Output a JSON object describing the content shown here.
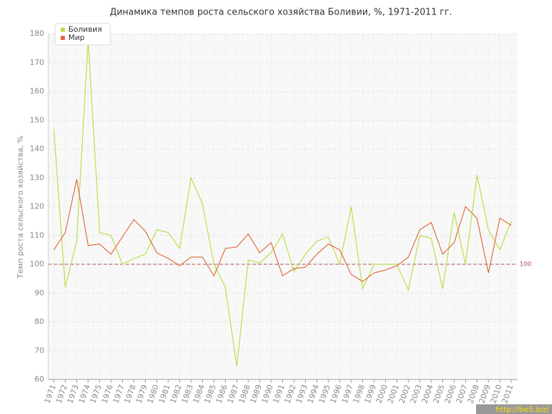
{
  "chart_data": {
    "type": "line",
    "title": "Динамика темпов роста сельского хозяйства Боливии, %, 1971-2011 гг.",
    "y_label": "Темп роста сельского хозяйства, %",
    "categories": [
      "1971",
      "1972",
      "1973",
      "1974",
      "1975",
      "1976",
      "1977",
      "1978",
      "1979",
      "1980",
      "1981",
      "1982",
      "1983",
      "1984",
      "1985",
      "1986",
      "1987",
      "1988",
      "1989",
      "1990",
      "1991",
      "1992",
      "1993",
      "1994",
      "1995",
      "1996",
      "1997",
      "1998",
      "1999",
      "2000",
      "2001",
      "2002",
      "2003",
      "2004",
      "2005",
      "2006",
      "2007",
      "2008",
      "2009",
      "2010",
      "2011"
    ],
    "series": [
      {
        "name": "Боливия",
        "color": "#bcdc45",
        "values": [
          147,
          92,
          108,
          178,
          111,
          110,
          100,
          102,
          103.5,
          112,
          111,
          105.5,
          130,
          121,
          100,
          92,
          64.5,
          101.5,
          100.5,
          104,
          110.5,
          97.5,
          103.5,
          108,
          109.5,
          100,
          120,
          91.5,
          100,
          100,
          100,
          91,
          110,
          109,
          91.5,
          118,
          100,
          131,
          112,
          105,
          115
        ]
      },
      {
        "name": "Мир",
        "color": "#e0693f",
        "values": [
          105,
          111,
          129.5,
          106.5,
          107,
          103.5,
          109.5,
          115.5,
          111.5,
          104,
          102,
          99.5,
          102.5,
          102.5,
          96,
          105.5,
          106,
          110.5,
          104,
          107.5,
          96,
          98.5,
          99,
          103.5,
          107,
          105,
          96.5,
          94,
          97,
          98,
          99.5,
          102.5,
          112,
          114.5,
          103.5,
          107.5,
          120,
          116,
          97,
          116,
          113.5
        ]
      }
    ],
    "ylim": [
      60,
      180
    ],
    "yticks": [
      60,
      70,
      80,
      90,
      100,
      110,
      120,
      130,
      140,
      150,
      160,
      170,
      180
    ],
    "grid": true,
    "reference_line": 100,
    "legend": "top-left",
    "watermark": "http://be5.biz/"
  }
}
